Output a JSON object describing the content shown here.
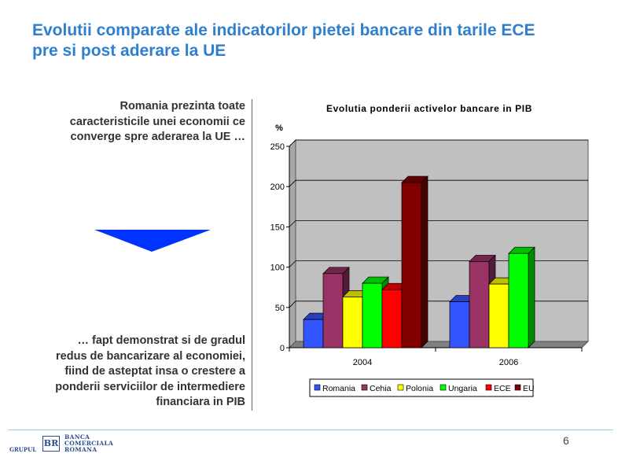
{
  "slide": {
    "title_line1": "Evolutii comparate ale indicatorilor pietei bancare din tarile ECE",
    "title_line2": "pre si post aderare la UE",
    "left_text_top": [
      "Romania prezinta toate",
      "caracteristicile unei economii ce",
      "converge spre aderarea la UE …"
    ],
    "left_text_bottom": [
      "… fapt demonstrat si de gradul",
      "redus de bancarizare al economiei,",
      "fiind de asteptat insa o crestere a",
      "ponderii serviciilor de intermediere",
      "financiara in PIB"
    ],
    "page_number": "6",
    "logo": {
      "group": "GRUPUL",
      "mark": "BR",
      "lines": [
        "BANCA",
        "COMERCIALA",
        "ROMANA"
      ]
    }
  },
  "colors": {
    "title": "#2f7fcf",
    "triangle": "#0033ff",
    "plot_bg": "#c0c0c0"
  },
  "chart_data": {
    "type": "bar",
    "title": "Evolutia ponderii activelor bancare in PIB",
    "ylabel": "%",
    "categories": [
      "2004",
      "2006"
    ],
    "ylim": [
      0,
      250
    ],
    "yticks": [
      0,
      50,
      100,
      150,
      200,
      250
    ],
    "grid": true,
    "legend_position": "bottom",
    "series": [
      {
        "name": "Romania",
        "values": [
          35,
          57
        ],
        "color": "#3355ff"
      },
      {
        "name": "Cehia",
        "values": [
          92,
          107
        ],
        "color": "#993366"
      },
      {
        "name": "Polonia",
        "values": [
          63,
          79
        ],
        "color": "#ffff00"
      },
      {
        "name": "Ungaria",
        "values": [
          80,
          117
        ],
        "color": "#00ff00"
      },
      {
        "name": "ECE",
        "values": [
          72,
          null
        ],
        "color": "#ff0000"
      },
      {
        "name": "EU",
        "values": [
          205,
          null
        ],
        "color": "#800000"
      }
    ]
  }
}
